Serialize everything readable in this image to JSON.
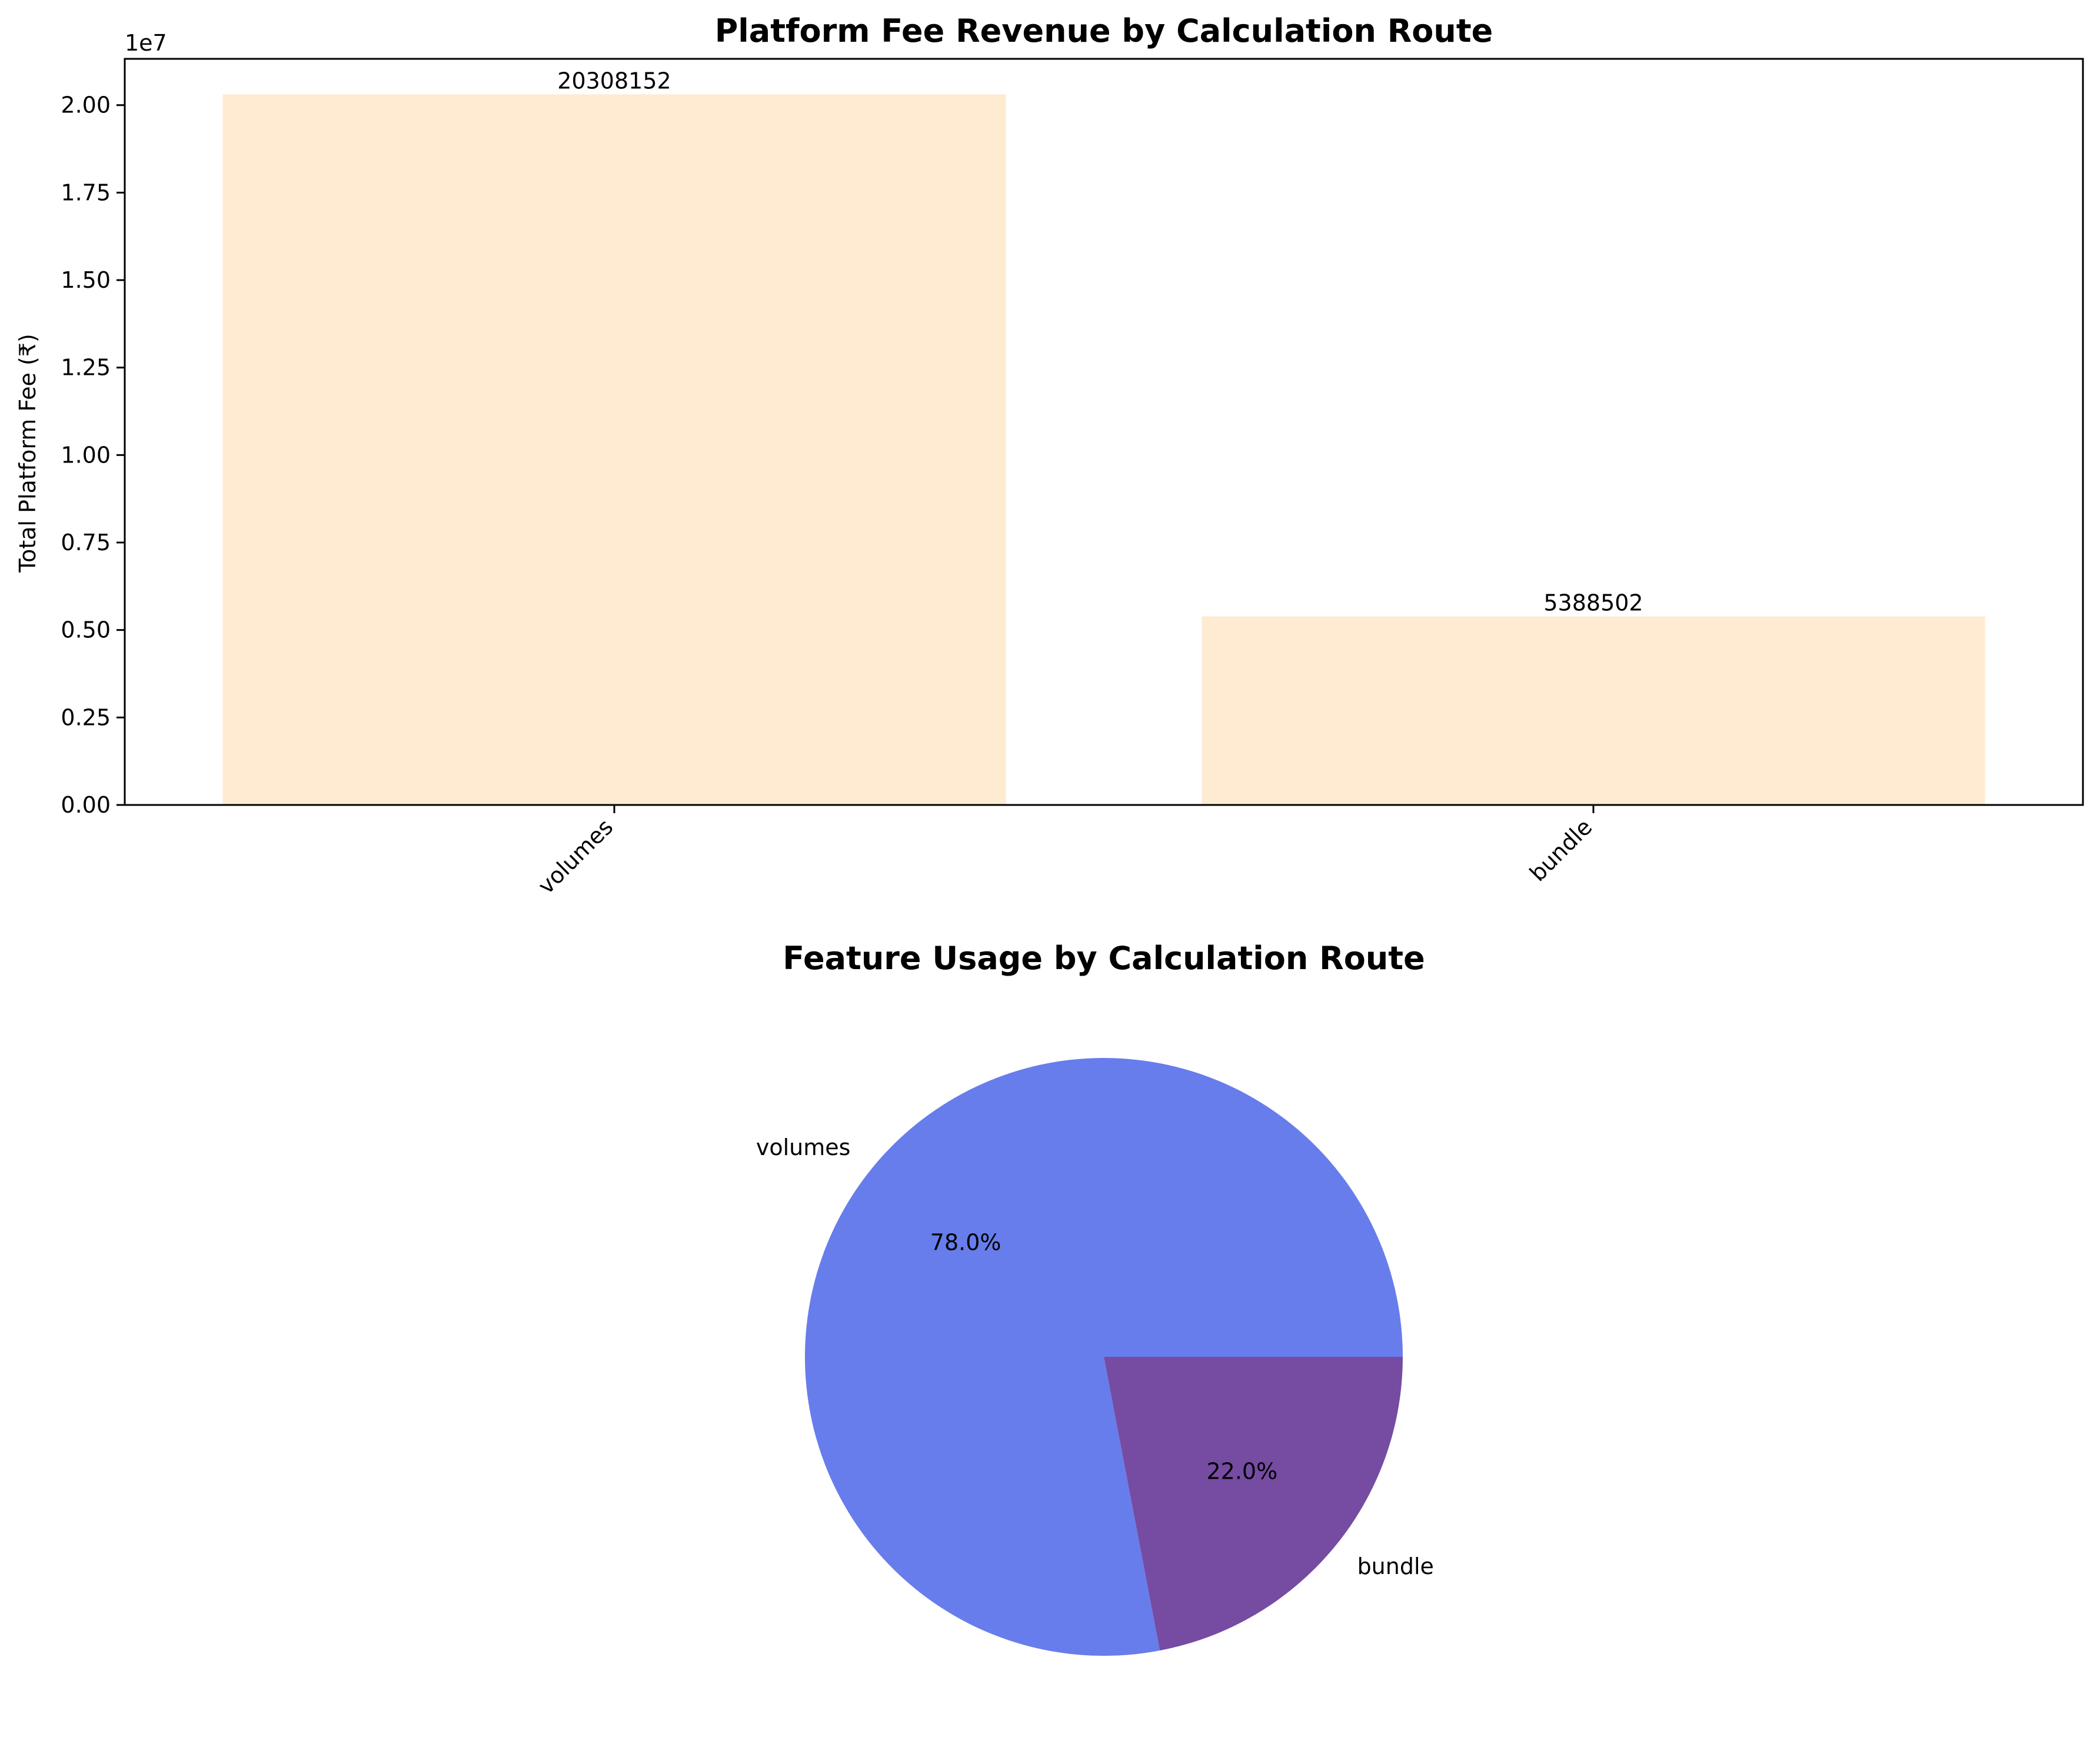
{
  "chart_data": [
    {
      "type": "bar",
      "title": "Platform Fee Revenue by Calculation Route",
      "xlabel": "",
      "ylabel": "Total Platform Fee (₹)",
      "offset_label": "1e7",
      "categories": [
        "volumes",
        "bundle"
      ],
      "values": [
        20308152,
        5388502
      ],
      "value_labels": [
        "20308152",
        "5388502"
      ],
      "ylim": [
        0,
        21323560
      ],
      "yticks": [
        0,
        2500000,
        5000000,
        7500000,
        10000000,
        12500000,
        15000000,
        17500000,
        20000000
      ],
      "ytick_labels": [
        "0.00",
        "0.25",
        "0.50",
        "0.75",
        "1.00",
        "1.25",
        "1.50",
        "1.75",
        "2.00"
      ],
      "bar_color": "#ffebd2",
      "grid": false,
      "xtick_rotation": 45
    },
    {
      "type": "pie",
      "title": "Feature Usage by Calculation Route",
      "labels": [
        "volumes",
        "bundle"
      ],
      "values": [
        78.0,
        22.0
      ],
      "pct_labels": [
        "78.0%",
        "22.0%"
      ],
      "colors": [
        "#677deb",
        "#764ba2"
      ]
    }
  ]
}
